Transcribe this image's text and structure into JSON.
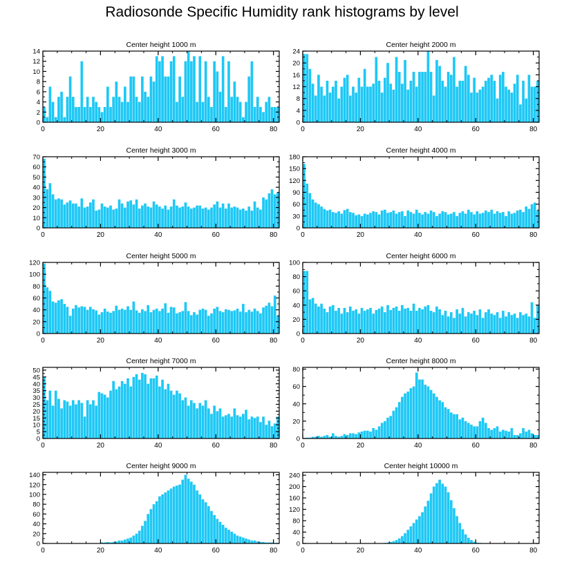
{
  "page": {
    "title": "Radiosonde Specific Humidity rank histograms by level"
  },
  "style": {
    "bar_color": "#1EC8F5",
    "axis_color": "#000000"
  },
  "chart_data": [
    {
      "type": "bar",
      "title": "Center height 1000 m",
      "xlim": [
        0,
        82
      ],
      "ylim": [
        0,
        14
      ],
      "xticks": [
        0,
        20,
        40,
        60,
        80
      ],
      "yticks": [
        0,
        2,
        4,
        6,
        8,
        10,
        12,
        14
      ],
      "values": [
        3,
        1,
        7,
        4,
        1,
        5,
        6,
        1,
        5,
        9,
        5,
        3,
        3,
        12,
        3,
        5,
        3,
        5,
        4,
        3,
        2,
        3,
        7,
        3,
        5,
        8,
        5,
        4,
        7,
        4,
        9,
        9,
        5,
        4,
        9,
        6,
        5,
        9,
        8,
        13,
        12,
        13,
        9,
        9,
        12,
        13,
        4,
        9,
        5,
        12,
        14,
        12,
        13,
        4,
        13,
        4,
        12,
        5,
        3,
        12,
        10,
        6,
        13,
        3,
        12,
        5,
        8,
        5,
        4,
        1,
        4,
        9,
        12,
        3,
        5,
        3,
        2,
        4,
        5,
        3,
        3,
        3
      ]
    },
    {
      "type": "bar",
      "title": "Center height 2000 m",
      "xlim": [
        0,
        82
      ],
      "ylim": [
        0,
        24
      ],
      "xticks": [
        0,
        20,
        40,
        60,
        80
      ],
      "yticks": [
        0,
        4,
        8,
        12,
        16,
        20,
        24
      ],
      "values": [
        23,
        23,
        18,
        13,
        9,
        16,
        12,
        9,
        14,
        10,
        12,
        14,
        8,
        12,
        15,
        16,
        9,
        12,
        10,
        15,
        12,
        18,
        12,
        12,
        13,
        22,
        14,
        10,
        15,
        20,
        13,
        11,
        22,
        17,
        13,
        21,
        11,
        14,
        17,
        12,
        17,
        17,
        17,
        24,
        17,
        9,
        21,
        19,
        14,
        12,
        17,
        16,
        22,
        12,
        14,
        14,
        19,
        16,
        10,
        15,
        10,
        11,
        12,
        14,
        15,
        16,
        14,
        8,
        16,
        17,
        12,
        11,
        10,
        13,
        16,
        6,
        14,
        8,
        16,
        12,
        12,
        14
      ]
    },
    {
      "type": "bar",
      "title": "Center height 3000 m",
      "xlim": [
        0,
        82
      ],
      "ylim": [
        0,
        70
      ],
      "xticks": [
        0,
        20,
        40,
        60,
        80
      ],
      "yticks": [
        0,
        10,
        20,
        30,
        40,
        50,
        60,
        70
      ],
      "values": [
        68,
        38,
        44,
        33,
        28,
        29,
        28,
        23,
        25,
        27,
        24,
        24,
        21,
        29,
        20,
        21,
        25,
        28,
        17,
        18,
        24,
        21,
        20,
        22,
        18,
        19,
        28,
        24,
        20,
        26,
        27,
        23,
        28,
        19,
        22,
        24,
        21,
        20,
        26,
        23,
        21,
        19,
        22,
        18,
        21,
        28,
        22,
        20,
        21,
        25,
        21,
        19,
        20,
        22,
        22,
        19,
        20,
        18,
        20,
        23,
        26,
        20,
        24,
        19,
        24,
        20,
        21,
        20,
        18,
        19,
        17,
        21,
        17,
        26,
        20,
        18,
        30,
        28,
        34,
        38,
        33,
        35
      ]
    },
    {
      "type": "bar",
      "title": "Center height 4000 m",
      "xlim": [
        0,
        82
      ],
      "ylim": [
        0,
        180
      ],
      "xticks": [
        0,
        20,
        40,
        60,
        80
      ],
      "yticks": [
        0,
        30,
        60,
        90,
        120,
        150,
        180
      ],
      "values": [
        162,
        112,
        88,
        72,
        64,
        60,
        54,
        48,
        44,
        46,
        40,
        38,
        42,
        36,
        45,
        48,
        40,
        38,
        32,
        34,
        30,
        36,
        34,
        38,
        42,
        40,
        34,
        44,
        46,
        38,
        40,
        44,
        36,
        40,
        42,
        30,
        44,
        40,
        36,
        46,
        38,
        34,
        40,
        36,
        44,
        40,
        30,
        36,
        42,
        40,
        34,
        36,
        40,
        30,
        38,
        42,
        36,
        46,
        40,
        34,
        42,
        36,
        38,
        44,
        40,
        46,
        36,
        42,
        38,
        40,
        30,
        42,
        36,
        38,
        44,
        46,
        40,
        54,
        48,
        60,
        64,
        44
      ]
    },
    {
      "type": "bar",
      "title": "Center height 5000 m",
      "xlim": [
        0,
        82
      ],
      "ylim": [
        0,
        120
      ],
      "xticks": [
        0,
        20,
        40,
        60,
        80
      ],
      "yticks": [
        0,
        20,
        40,
        60,
        80,
        100,
        120
      ],
      "values": [
        118,
        78,
        72,
        54,
        52,
        56,
        58,
        50,
        45,
        30,
        42,
        48,
        44,
        46,
        45,
        40,
        45,
        41,
        39,
        32,
        36,
        42,
        37,
        35,
        38,
        47,
        40,
        42,
        40,
        46,
        40,
        54,
        39,
        35,
        41,
        38,
        48,
        36,
        40,
        42,
        38,
        42,
        51,
        35,
        45,
        44,
        34,
        36,
        38,
        53,
        38,
        31,
        36,
        32,
        40,
        42,
        40,
        30,
        34,
        42,
        45,
        38,
        36,
        41,
        40,
        38,
        39,
        42,
        37,
        50,
        36,
        40,
        37,
        42,
        38,
        34,
        44,
        47,
        52,
        46,
        64,
        30
      ]
    },
    {
      "type": "bar",
      "title": "Center height 6000 m",
      "xlim": [
        0,
        82
      ],
      "ylim": [
        0,
        100
      ],
      "xticks": [
        0,
        20,
        40,
        60,
        80
      ],
      "yticks": [
        0,
        20,
        40,
        60,
        80,
        100
      ],
      "values": [
        88,
        88,
        48,
        50,
        42,
        38,
        42,
        35,
        30,
        38,
        40,
        32,
        36,
        28,
        36,
        30,
        38,
        32,
        34,
        28,
        36,
        32,
        34,
        36,
        28,
        33,
        35,
        38,
        30,
        40,
        33,
        36,
        38,
        32,
        40,
        35,
        36,
        32,
        42,
        32,
        36,
        34,
        38,
        40,
        32,
        30,
        38,
        34,
        26,
        32,
        24,
        30,
        22,
        34,
        28,
        36,
        24,
        30,
        28,
        32,
        26,
        34,
        22,
        30,
        34,
        28,
        26,
        30,
        22,
        32,
        24,
        30,
        26,
        28,
        22,
        30,
        26,
        28,
        24,
        44,
        22,
        40
      ]
    },
    {
      "type": "bar",
      "title": "Center height 7000 m",
      "xlim": [
        0,
        82
      ],
      "ylim": [
        0,
        52
      ],
      "xticks": [
        0,
        20,
        40,
        60,
        80
      ],
      "yticks": [
        0,
        5,
        10,
        15,
        20,
        25,
        30,
        35,
        40,
        45,
        50
      ],
      "values": [
        45,
        28,
        35,
        24,
        35,
        29,
        22,
        28,
        27,
        24,
        28,
        25,
        28,
        26,
        16,
        28,
        25,
        28,
        24,
        34,
        33,
        32,
        30,
        35,
        42,
        36,
        38,
        42,
        40,
        44,
        38,
        45,
        47,
        43,
        48,
        47,
        40,
        44,
        44,
        46,
        38,
        43,
        36,
        40,
        35,
        32,
        35,
        33,
        28,
        30,
        24,
        28,
        26,
        22,
        26,
        24,
        28,
        22,
        18,
        24,
        20,
        22,
        16,
        17,
        18,
        16,
        22,
        17,
        16,
        18,
        21,
        14,
        16,
        15,
        16,
        12,
        16,
        10,
        13,
        9,
        11,
        16
      ]
    },
    {
      "type": "bar",
      "title": "Center height 8000 m",
      "xlim": [
        0,
        82
      ],
      "ylim": [
        0,
        82
      ],
      "xticks": [
        0,
        20,
        40,
        60,
        80
      ],
      "yticks": [
        0,
        20,
        40,
        60,
        80
      ],
      "values": [
        0,
        1,
        1,
        2,
        2,
        3,
        2,
        3,
        4,
        2,
        6,
        3,
        2,
        3,
        5,
        4,
        6,
        6,
        5,
        7,
        8,
        9,
        9,
        8,
        12,
        10,
        14,
        18,
        20,
        24,
        26,
        32,
        36,
        42,
        48,
        52,
        54,
        58,
        60,
        76,
        68,
        68,
        62,
        60,
        56,
        52,
        48,
        44,
        42,
        36,
        34,
        30,
        28,
        28,
        22,
        24,
        20,
        18,
        16,
        14,
        14,
        20,
        24,
        18,
        12,
        10,
        12,
        14,
        8,
        10,
        9,
        8,
        12,
        4,
        4,
        6,
        12,
        8,
        10,
        6,
        4,
        4
      ]
    },
    {
      "type": "bar",
      "title": "Center height 9000 m",
      "xlim": [
        0,
        82
      ],
      "ylim": [
        0,
        145
      ],
      "xticks": [
        0,
        20,
        40,
        60,
        80
      ],
      "yticks": [
        0,
        20,
        40,
        60,
        80,
        100,
        120,
        140
      ],
      "values": [
        0,
        0,
        0,
        0,
        0,
        0,
        0,
        0,
        0,
        0,
        0,
        0,
        0,
        0,
        0,
        0,
        0,
        0,
        0,
        0,
        2,
        2,
        3,
        2,
        3,
        4,
        6,
        6,
        8,
        10,
        12,
        16,
        20,
        26,
        36,
        46,
        60,
        70,
        80,
        86,
        96,
        100,
        104,
        108,
        112,
        116,
        118,
        120,
        130,
        140,
        132,
        126,
        120,
        108,
        100,
        90,
        84,
        76,
        66,
        58,
        50,
        44,
        38,
        32,
        28,
        24,
        20,
        16,
        14,
        12,
        10,
        8,
        6,
        6,
        4,
        3,
        3,
        2,
        2,
        2,
        1,
        1
      ]
    },
    {
      "type": "bar",
      "title": "Center height 10000 m",
      "xlim": [
        0,
        82
      ],
      "ylim": [
        0,
        250
      ],
      "xticks": [
        0,
        20,
        40,
        60,
        80
      ],
      "yticks": [
        0,
        40,
        80,
        120,
        160,
        200,
        240
      ],
      "values": [
        0,
        0,
        0,
        0,
        0,
        0,
        0,
        0,
        0,
        0,
        0,
        0,
        0,
        0,
        0,
        0,
        0,
        0,
        0,
        0,
        0,
        0,
        0,
        0,
        0,
        0,
        1,
        1,
        2,
        3,
        5,
        8,
        12,
        18,
        26,
        36,
        48,
        60,
        72,
        84,
        96,
        110,
        130,
        150,
        176,
        200,
        212,
        224,
        210,
        200,
        180,
        152,
        124,
        96,
        72,
        50,
        32,
        20,
        12,
        6,
        3,
        2,
        1,
        0,
        0,
        0,
        0,
        0,
        0,
        0,
        0,
        0,
        0,
        0,
        0,
        0,
        0,
        0,
        0,
        0,
        0,
        0
      ]
    }
  ]
}
